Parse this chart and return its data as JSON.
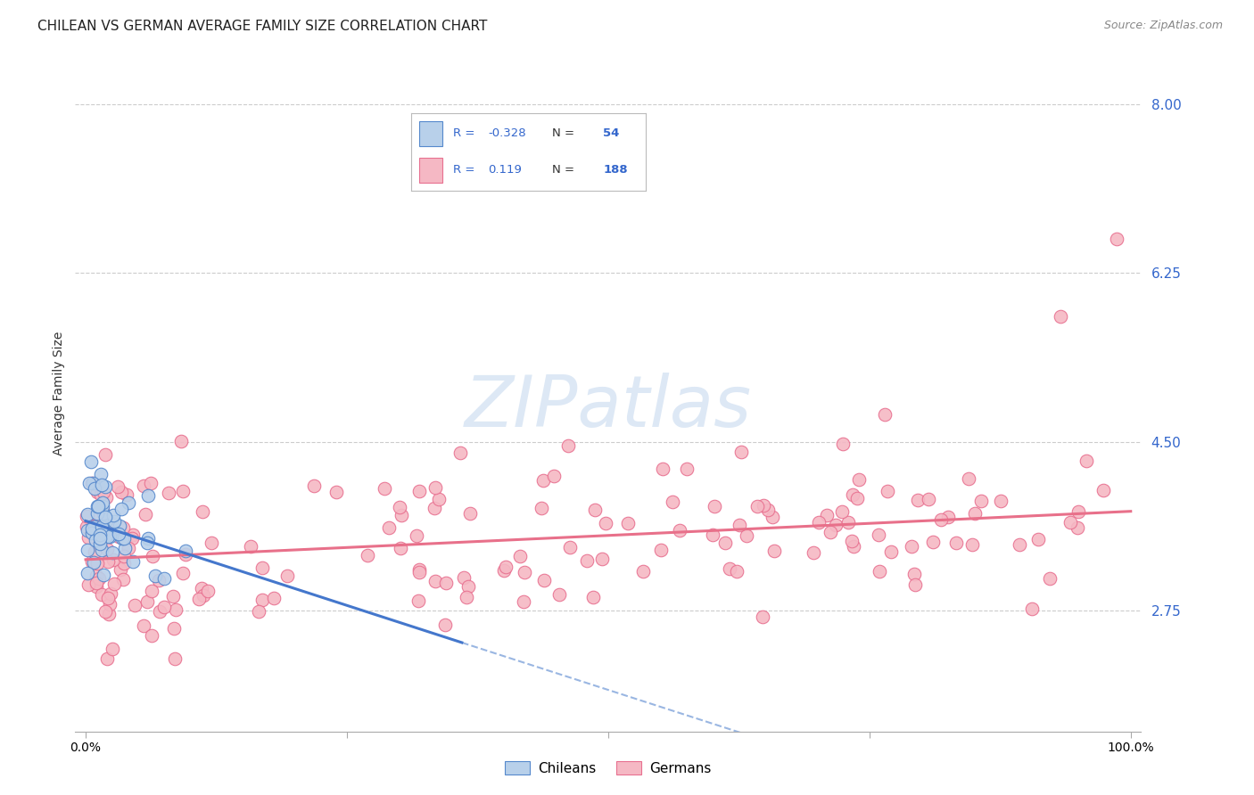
{
  "title": "CHILEAN VS GERMAN AVERAGE FAMILY SIZE CORRELATION CHART",
  "source": "Source: ZipAtlas.com",
  "ylabel": "Average Family Size",
  "yticks": [
    2.75,
    4.5,
    6.25,
    8.0
  ],
  "ylim": [
    1.5,
    8.5
  ],
  "xlim": [
    0.0,
    1.0
  ],
  "chilean_R": -0.328,
  "chilean_N": 54,
  "german_R": 0.119,
  "german_N": 188,
  "chilean_fill_color": "#b8d0ea",
  "german_fill_color": "#f5b8c4",
  "chilean_edge_color": "#5588cc",
  "german_edge_color": "#e87090",
  "chilean_line_color": "#4477cc",
  "german_line_color": "#e8708a",
  "dashed_color": "#88aadd",
  "text_blue_color": "#3366cc",
  "text_N_color": "#3366cc",
  "watermark_color": "#dde8f5",
  "grid_color": "#cccccc",
  "background_color": "#ffffff",
  "legend_border_color": "#bbbbbb",
  "chile_line_x_end": 0.36,
  "german_line_intercept": 3.28,
  "german_line_slope": 0.5,
  "chile_line_intercept": 3.68,
  "chile_line_slope": -3.5
}
